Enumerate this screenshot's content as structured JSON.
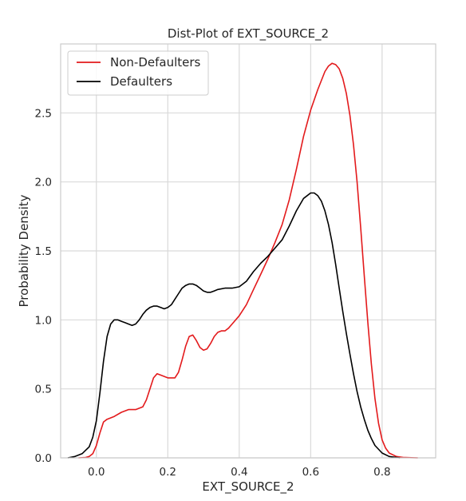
{
  "chart_data": {
    "type": "line",
    "title": "Dist-Plot of EXT_SOURCE_2",
    "xlabel": "EXT_SOURCE_2",
    "ylabel": "Probability Density",
    "xlim": [
      -0.1,
      0.95
    ],
    "ylim": [
      0,
      3.0
    ],
    "x_ticks": [
      0.0,
      0.2,
      0.4,
      0.6,
      0.8
    ],
    "x_tick_labels": [
      "0.0",
      "0.2",
      "0.4",
      "0.6",
      "0.8"
    ],
    "y_ticks": [
      0.0,
      0.5,
      1.0,
      1.5,
      2.0,
      2.5
    ],
    "y_tick_labels": [
      "0.0",
      "0.5",
      "1.0",
      "1.5",
      "2.0",
      "2.5"
    ],
    "grid": true,
    "legend_position": "top-left",
    "series": [
      {
        "name": "Non-Defaulters",
        "color": "#e31a1c",
        "points": [
          [
            -0.05,
            0.0
          ],
          [
            -0.03,
            0.003
          ],
          [
            -0.02,
            0.01
          ],
          [
            -0.01,
            0.03
          ],
          [
            0.0,
            0.09
          ],
          [
            0.01,
            0.18
          ],
          [
            0.02,
            0.26
          ],
          [
            0.03,
            0.28
          ],
          [
            0.05,
            0.3
          ],
          [
            0.07,
            0.33
          ],
          [
            0.09,
            0.35
          ],
          [
            0.11,
            0.35
          ],
          [
            0.13,
            0.37
          ],
          [
            0.14,
            0.42
          ],
          [
            0.15,
            0.5
          ],
          [
            0.16,
            0.58
          ],
          [
            0.17,
            0.61
          ],
          [
            0.18,
            0.6
          ],
          [
            0.19,
            0.59
          ],
          [
            0.2,
            0.58
          ],
          [
            0.21,
            0.58
          ],
          [
            0.22,
            0.58
          ],
          [
            0.23,
            0.62
          ],
          [
            0.24,
            0.71
          ],
          [
            0.25,
            0.81
          ],
          [
            0.26,
            0.88
          ],
          [
            0.27,
            0.89
          ],
          [
            0.28,
            0.85
          ],
          [
            0.29,
            0.8
          ],
          [
            0.3,
            0.78
          ],
          [
            0.31,
            0.79
          ],
          [
            0.32,
            0.83
          ],
          [
            0.33,
            0.88
          ],
          [
            0.34,
            0.91
          ],
          [
            0.35,
            0.92
          ],
          [
            0.36,
            0.92
          ],
          [
            0.37,
            0.94
          ],
          [
            0.38,
            0.97
          ],
          [
            0.4,
            1.03
          ],
          [
            0.42,
            1.11
          ],
          [
            0.44,
            1.22
          ],
          [
            0.46,
            1.33
          ],
          [
            0.48,
            1.44
          ],
          [
            0.5,
            1.56
          ],
          [
            0.52,
            1.69
          ],
          [
            0.54,
            1.87
          ],
          [
            0.56,
            2.09
          ],
          [
            0.58,
            2.33
          ],
          [
            0.6,
            2.52
          ],
          [
            0.62,
            2.67
          ],
          [
            0.64,
            2.8
          ],
          [
            0.65,
            2.84
          ],
          [
            0.66,
            2.86
          ],
          [
            0.67,
            2.85
          ],
          [
            0.68,
            2.82
          ],
          [
            0.69,
            2.75
          ],
          [
            0.7,
            2.64
          ],
          [
            0.71,
            2.48
          ],
          [
            0.72,
            2.27
          ],
          [
            0.73,
            2.0
          ],
          [
            0.74,
            1.67
          ],
          [
            0.75,
            1.32
          ],
          [
            0.76,
            0.98
          ],
          [
            0.77,
            0.68
          ],
          [
            0.78,
            0.43
          ],
          [
            0.79,
            0.25
          ],
          [
            0.8,
            0.13
          ],
          [
            0.81,
            0.07
          ],
          [
            0.82,
            0.035
          ],
          [
            0.84,
            0.01
          ],
          [
            0.86,
            0.003
          ],
          [
            0.9,
            0.0
          ]
        ]
      },
      {
        "name": "Defaulters",
        "color": "#000000",
        "points": [
          [
            -0.08,
            0.0
          ],
          [
            -0.06,
            0.01
          ],
          [
            -0.04,
            0.03
          ],
          [
            -0.02,
            0.08
          ],
          [
            -0.01,
            0.15
          ],
          [
            0.0,
            0.27
          ],
          [
            0.01,
            0.47
          ],
          [
            0.02,
            0.7
          ],
          [
            0.03,
            0.88
          ],
          [
            0.04,
            0.97
          ],
          [
            0.05,
            1.0
          ],
          [
            0.06,
            1.0
          ],
          [
            0.07,
            0.99
          ],
          [
            0.08,
            0.98
          ],
          [
            0.09,
            0.97
          ],
          [
            0.1,
            0.96
          ],
          [
            0.11,
            0.97
          ],
          [
            0.12,
            1.0
          ],
          [
            0.13,
            1.04
          ],
          [
            0.14,
            1.07
          ],
          [
            0.15,
            1.09
          ],
          [
            0.16,
            1.1
          ],
          [
            0.17,
            1.1
          ],
          [
            0.18,
            1.09
          ],
          [
            0.19,
            1.08
          ],
          [
            0.2,
            1.09
          ],
          [
            0.21,
            1.11
          ],
          [
            0.22,
            1.15
          ],
          [
            0.23,
            1.19
          ],
          [
            0.24,
            1.23
          ],
          [
            0.25,
            1.25
          ],
          [
            0.26,
            1.26
          ],
          [
            0.27,
            1.26
          ],
          [
            0.28,
            1.25
          ],
          [
            0.29,
            1.23
          ],
          [
            0.3,
            1.21
          ],
          [
            0.31,
            1.2
          ],
          [
            0.32,
            1.2
          ],
          [
            0.33,
            1.21
          ],
          [
            0.34,
            1.22
          ],
          [
            0.36,
            1.23
          ],
          [
            0.38,
            1.23
          ],
          [
            0.4,
            1.24
          ],
          [
            0.42,
            1.28
          ],
          [
            0.44,
            1.35
          ],
          [
            0.46,
            1.41
          ],
          [
            0.48,
            1.46
          ],
          [
            0.5,
            1.52
          ],
          [
            0.52,
            1.58
          ],
          [
            0.54,
            1.68
          ],
          [
            0.56,
            1.79
          ],
          [
            0.58,
            1.88
          ],
          [
            0.6,
            1.92
          ],
          [
            0.61,
            1.92
          ],
          [
            0.62,
            1.9
          ],
          [
            0.63,
            1.86
          ],
          [
            0.64,
            1.79
          ],
          [
            0.65,
            1.69
          ],
          [
            0.66,
            1.56
          ],
          [
            0.67,
            1.4
          ],
          [
            0.68,
            1.23
          ],
          [
            0.69,
            1.06
          ],
          [
            0.7,
            0.9
          ],
          [
            0.71,
            0.75
          ],
          [
            0.72,
            0.61
          ],
          [
            0.73,
            0.48
          ],
          [
            0.74,
            0.37
          ],
          [
            0.75,
            0.28
          ],
          [
            0.76,
            0.2
          ],
          [
            0.77,
            0.14
          ],
          [
            0.78,
            0.09
          ],
          [
            0.8,
            0.035
          ],
          [
            0.82,
            0.01
          ],
          [
            0.85,
            0.0
          ]
        ]
      }
    ]
  }
}
